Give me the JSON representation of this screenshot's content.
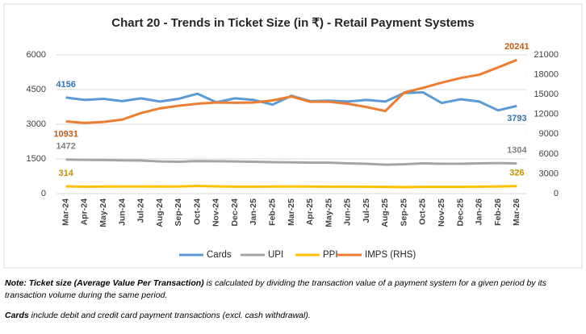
{
  "chart_data": {
    "type": "line",
    "title": "Chart 20 - Trends in Ticket Size (in ₹) - Retail Payment Systems",
    "categories": [
      "Mar-24",
      "Apr-24",
      "May-24",
      "Jun-24",
      "Jul-24",
      "Aug-24",
      "Sep-24",
      "Oct-24",
      "Nov-24",
      "Dec-24",
      "Jan-25",
      "Feb-25",
      "Mar-25",
      "Apr-25",
      "May-25",
      "Jun-25",
      "Jul-25",
      "Aug-25",
      "Sep-25",
      "Oct-25",
      "Nov-25",
      "Dec-25",
      "Jan-26",
      "Feb-26",
      "Mar-26"
    ],
    "series": [
      {
        "name": "Cards",
        "color": "#5b9bd5",
        "values": [
          4156,
          4050,
          4100,
          4000,
          4120,
          3980,
          4100,
          4320,
          3950,
          4120,
          4050,
          3850,
          4230,
          4000,
          4020,
          3980,
          4050,
          3980,
          4350,
          4380,
          3920,
          4080,
          3980,
          3600,
          3793
        ]
      },
      {
        "name": "UPI",
        "color": "#a5a5a5",
        "values": [
          1472,
          1460,
          1450,
          1440,
          1430,
          1390,
          1380,
          1410,
          1400,
          1390,
          1380,
          1360,
          1350,
          1340,
          1340,
          1310,
          1290,
          1250,
          1270,
          1310,
          1290,
          1290,
          1310,
          1320,
          1304
        ]
      },
      {
        "name": "PPI",
        "color": "#ffc000",
        "values": [
          314,
          300,
          305,
          310,
          310,
          305,
          310,
          330,
          315,
          300,
          300,
          305,
          310,
          305,
          300,
          300,
          295,
          290,
          280,
          290,
          290,
          290,
          300,
          310,
          326
        ]
      },
      {
        "name": "IMPS (RHS)",
        "color": "#ed7d31",
        "axis": "y2",
        "values": [
          10931,
          10700,
          10850,
          11200,
          12200,
          12900,
          13300,
          13600,
          13800,
          13750,
          13800,
          14100,
          14700,
          13900,
          13900,
          13600,
          13100,
          12500,
          15300,
          16000,
          16800,
          17500,
          18000,
          19100,
          20241
        ]
      }
    ],
    "ylim": [
      0,
      6000
    ],
    "yticks": [
      0,
      1500,
      3000,
      4500,
      6000
    ],
    "y2lim": [
      0,
      21000
    ],
    "y2ticks": [
      0,
      3000,
      6000,
      9000,
      12000,
      15000,
      18000,
      21000
    ],
    "grid": true,
    "legend": "bottom"
  },
  "notes": [
    {
      "bold": "Note: Ticket size (Average Value Per Transaction)",
      "text": " is calculated by dividing the transaction value of a payment system for a given period by its transaction volume during the same period."
    },
    {
      "bold": "Cards",
      "text": " include debit and credit card payment transactions (excl. cash withdrawal)."
    }
  ]
}
